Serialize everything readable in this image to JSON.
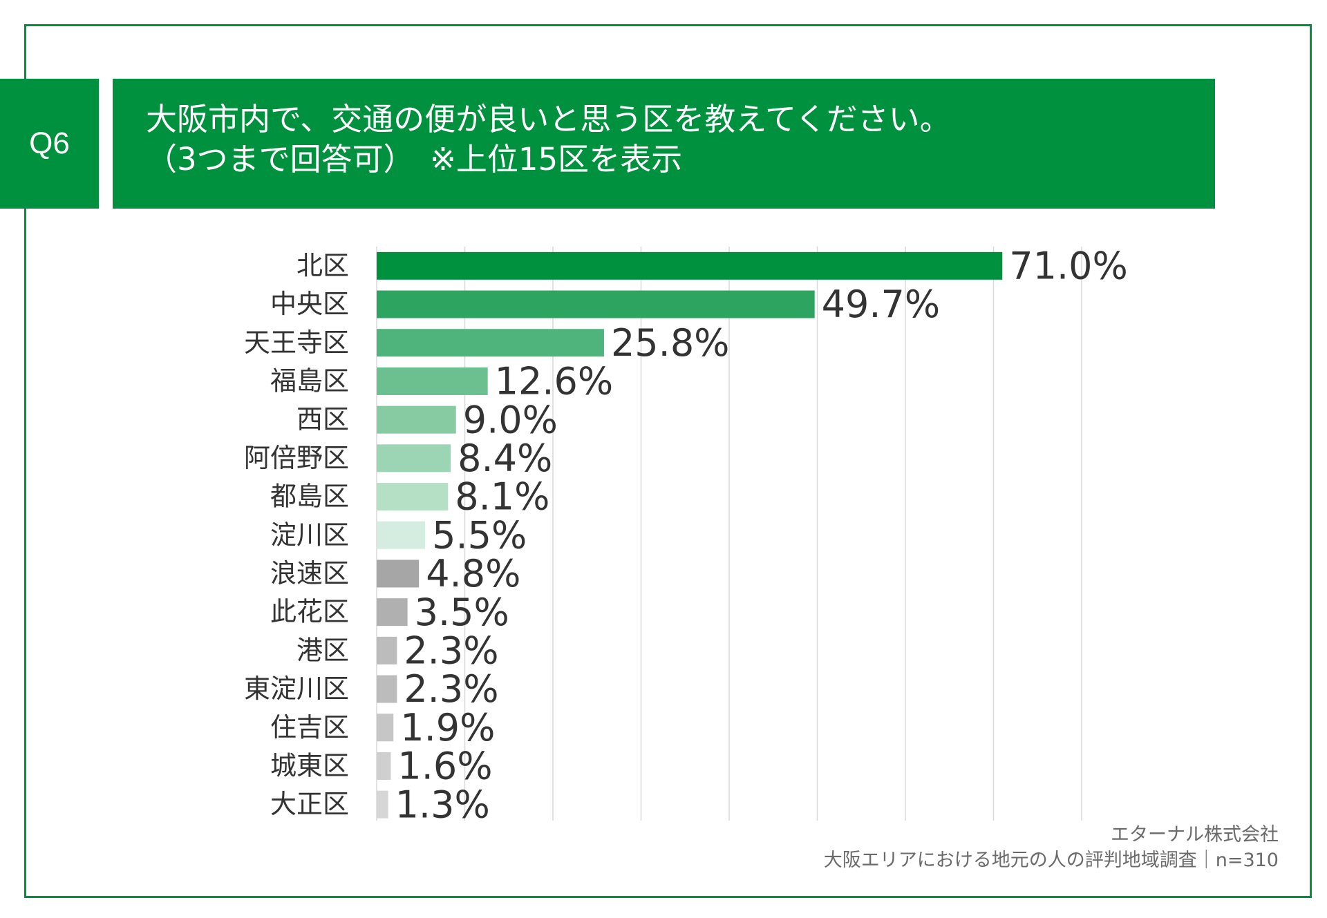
{
  "badge": "Q6",
  "title": {
    "line1": "大阪市内で、交通の便が良いと思う区を教えてください。",
    "line2": "（3つまで回答可）　※上位15区を表示"
  },
  "chart_data": {
    "type": "bar",
    "orientation": "horizontal",
    "unit": "%",
    "xlim": [
      0,
      80
    ],
    "grid": true,
    "categories": [
      "北区",
      "中央区",
      "天王寺区",
      "福島区",
      "西区",
      "阿倍野区",
      "都島区",
      "淀川区",
      "浪速区",
      "此花区",
      "港区",
      "東淀川区",
      "住吉区",
      "城東区",
      "大正区"
    ],
    "values": [
      71.0,
      49.7,
      25.8,
      12.6,
      9.0,
      8.4,
      8.1,
      5.5,
      4.8,
      3.5,
      2.3,
      2.3,
      1.9,
      1.6,
      1.3
    ],
    "labels": [
      "71.0%",
      "49.7%",
      "25.8%",
      "12.6%",
      "9.0%",
      "8.4%",
      "8.1%",
      "5.5%",
      "4.8%",
      "3.5%",
      "2.3%",
      "2.3%",
      "1.9%",
      "1.6%",
      "1.3%"
    ],
    "colors": [
      "#00913f",
      "#2ea461",
      "#4fb47b",
      "#6cc090",
      "#86cba2",
      "#9cd5b3",
      "#b5e0c6",
      "#d5ede0",
      "#a6a6a6",
      "#b0b0b0",
      "#bcbcbc",
      "#bcbcbc",
      "#c6c6c6",
      "#cfcfcf",
      "#d6d6d6"
    ]
  },
  "source": {
    "line1": "エターナル株式会社",
    "line2": "大阪エリアにおける地元の人の評判地域調査｜n=310"
  },
  "colors": {
    "brand": "#00913f",
    "grid": "#d9d9d9",
    "text": "#333333"
  }
}
